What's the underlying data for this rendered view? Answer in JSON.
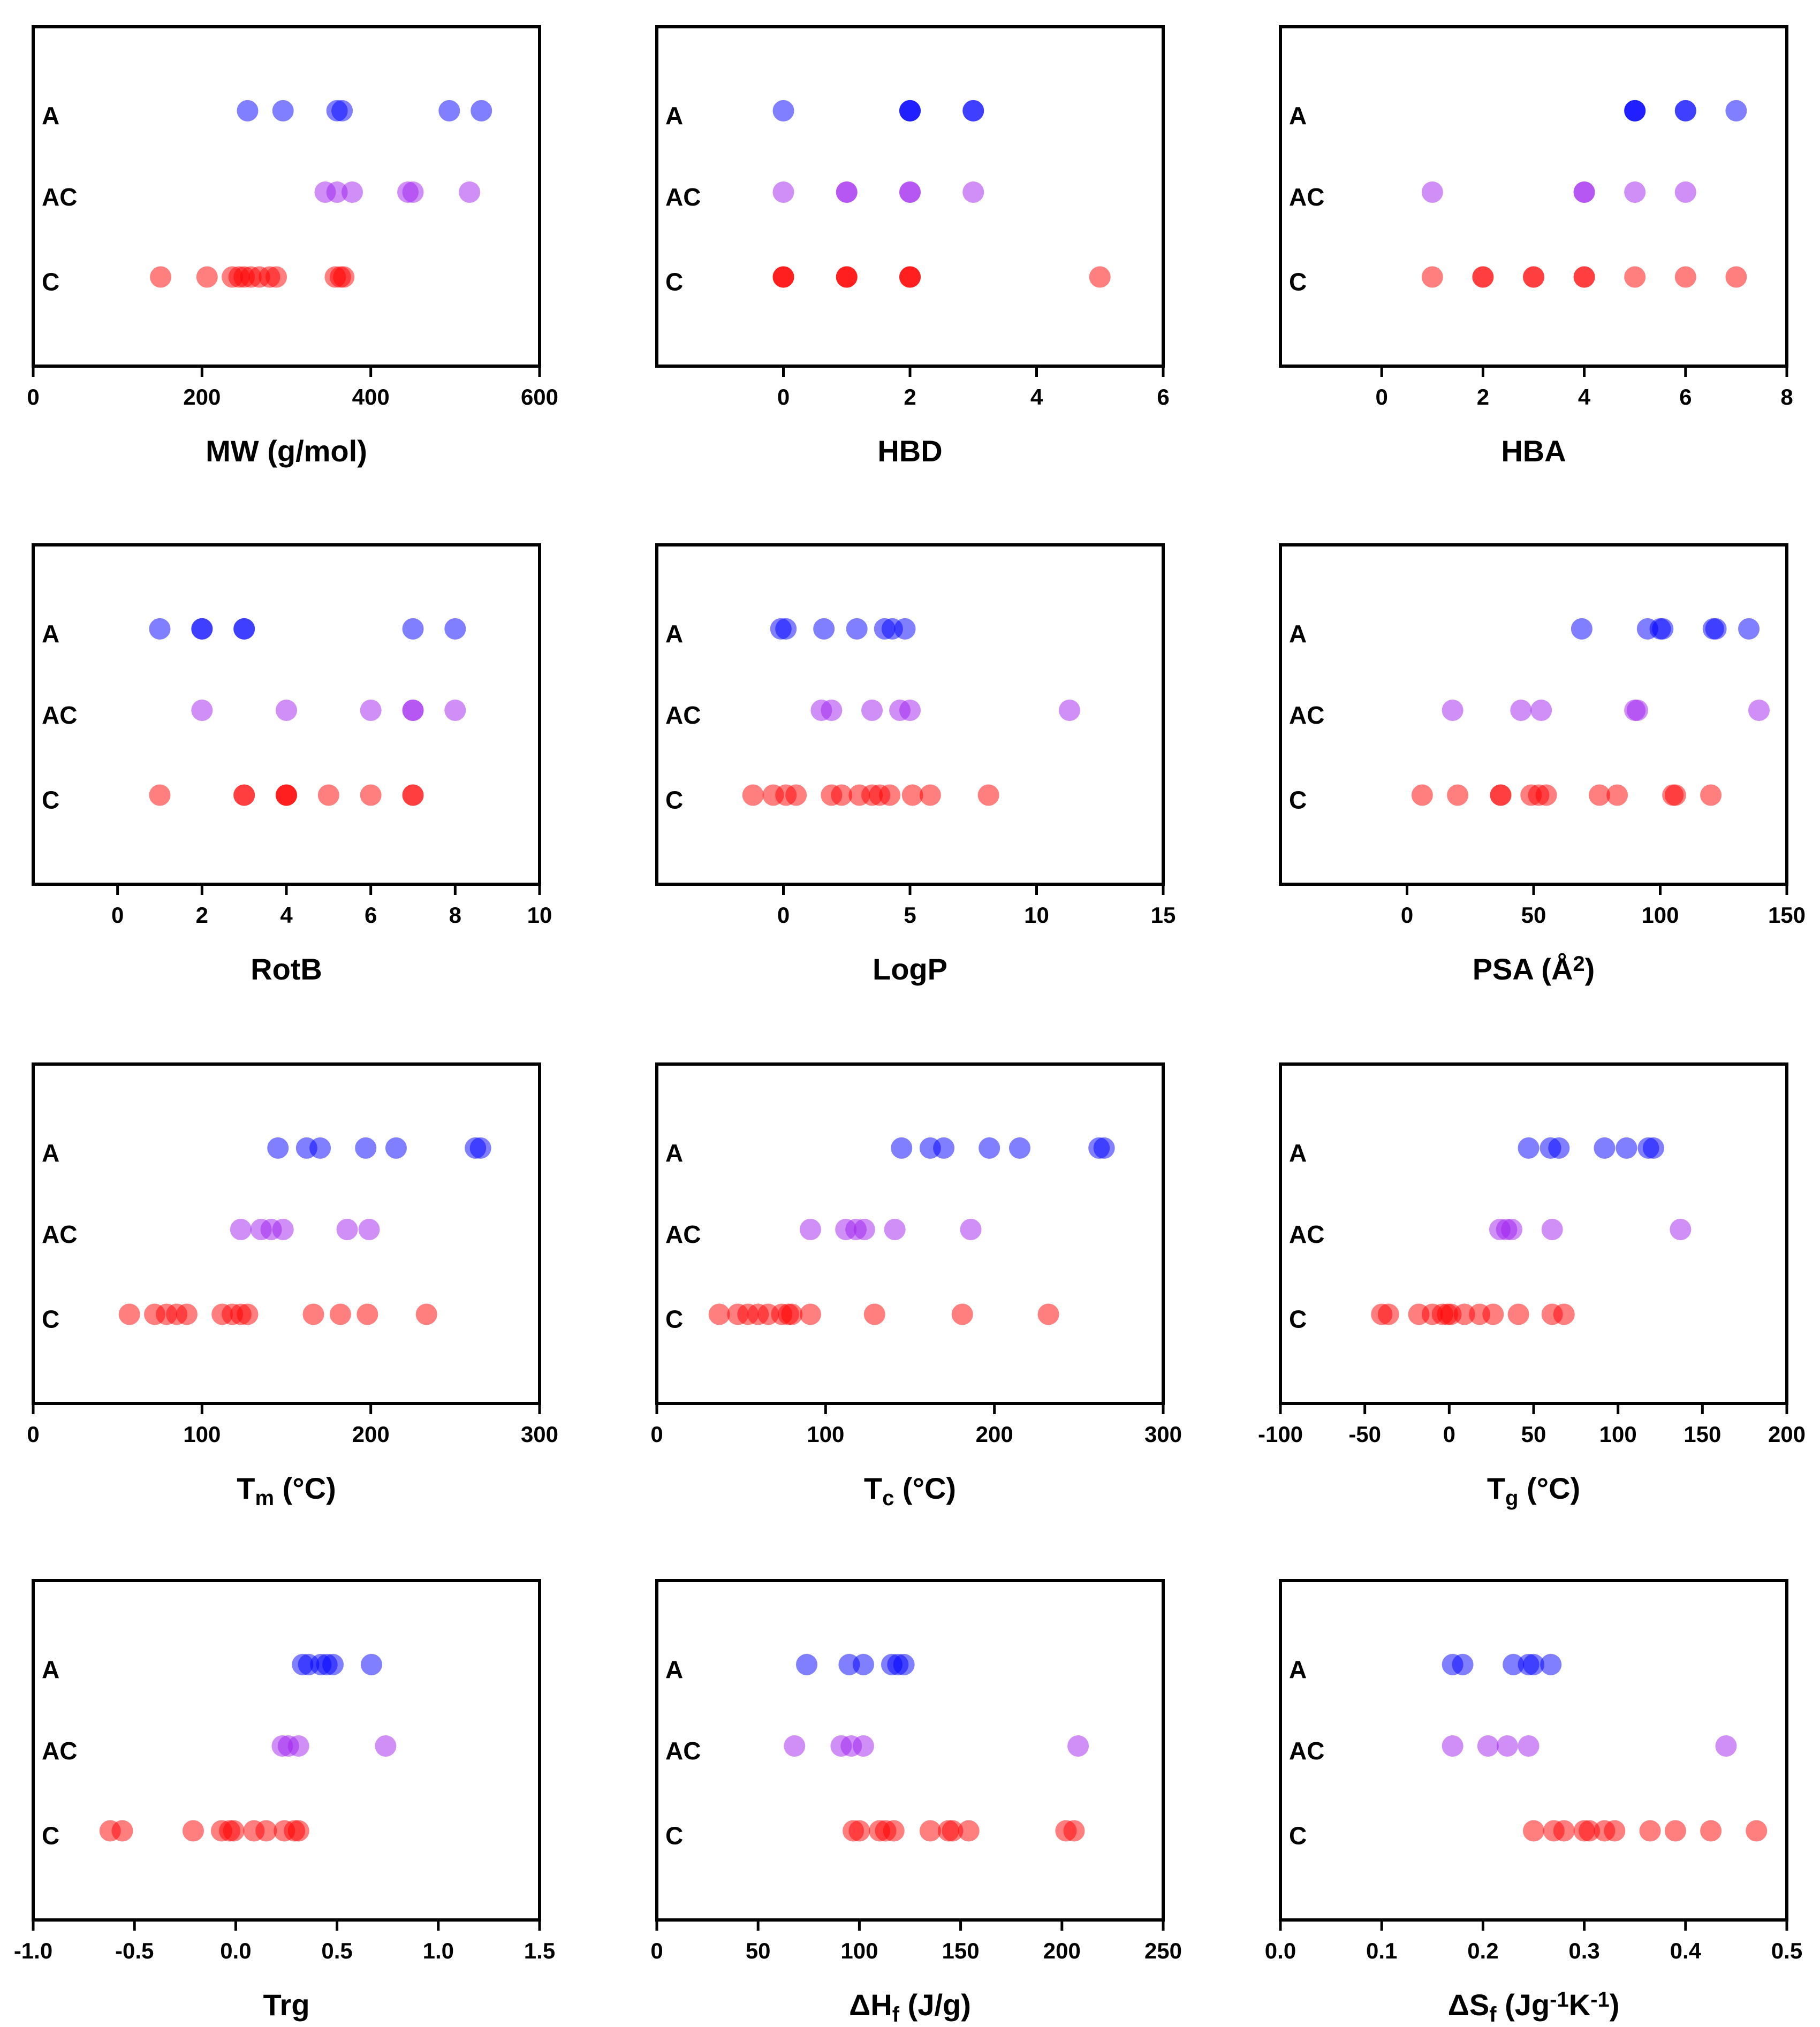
{
  "colors": {
    "A": "#0000ff",
    "AC": "#a020f0",
    "C": "#ff0000",
    "axis": "#000000"
  },
  "chart_data": [
    {
      "type": "scatter",
      "title": "",
      "xlabel": "MW (g/mol)",
      "xlabel_parts": [
        {
          "t": "MW (g/mol)"
        }
      ],
      "xlim": [
        0,
        600
      ],
      "xticks": [
        0,
        200,
        400,
        600
      ],
      "tick_labels": [
        "0",
        "200",
        "400",
        "600"
      ],
      "groups": [
        "A",
        "AC",
        "C"
      ],
      "series": [
        {
          "name": "A",
          "x": [
            254,
            296,
            360,
            366,
            493,
            531
          ]
        },
        {
          "name": "AC",
          "x": [
            346,
            360,
            378,
            444,
            450,
            517
          ]
        },
        {
          "name": "C",
          "x": [
            151,
            206,
            236,
            244,
            250,
            258,
            268,
            280,
            288,
            358,
            364,
            368
          ]
        }
      ]
    },
    {
      "type": "scatter",
      "title": "",
      "xlabel": "HBD",
      "xlabel_parts": [
        {
          "t": "HBD"
        }
      ],
      "xlim": [
        -2,
        6
      ],
      "xticks": [
        0,
        2,
        4,
        6
      ],
      "tick_labels": [
        "0",
        "2",
        "4",
        "6"
      ],
      "groups": [
        "A",
        "AC",
        "C"
      ],
      "series": [
        {
          "name": "A",
          "x": [
            0,
            2,
            2,
            2,
            3,
            3
          ]
        },
        {
          "name": "AC",
          "x": [
            0,
            1,
            1,
            2,
            2,
            3
          ]
        },
        {
          "name": "C",
          "x": [
            0,
            0,
            0,
            1,
            1,
            1,
            2,
            2,
            2,
            5
          ]
        }
      ]
    },
    {
      "type": "scatter",
      "title": "",
      "xlabel": "HBA",
      "xlabel_parts": [
        {
          "t": "HBA"
        }
      ],
      "xlim": [
        -2,
        8
      ],
      "xticks": [
        0,
        2,
        4,
        6,
        8
      ],
      "tick_labels": [
        "0",
        "2",
        "4",
        "6",
        "8"
      ],
      "groups": [
        "A",
        "AC",
        "C"
      ],
      "series": [
        {
          "name": "A",
          "x": [
            5,
            5,
            5,
            6,
            6,
            7
          ]
        },
        {
          "name": "AC",
          "x": [
            1,
            4,
            4,
            5,
            6
          ]
        },
        {
          "name": "C",
          "x": [
            1,
            2,
            2,
            3,
            3,
            4,
            4,
            5,
            6,
            7
          ]
        }
      ]
    },
    {
      "type": "scatter",
      "title": "",
      "xlabel": "RotB",
      "xlabel_parts": [
        {
          "t": "RotB"
        }
      ],
      "xlim": [
        -2,
        10
      ],
      "xticks": [
        0,
        2,
        4,
        6,
        8,
        10
      ],
      "tick_labels": [
        "0",
        "2",
        "4",
        "6",
        "8",
        "10"
      ],
      "groups": [
        "A",
        "AC",
        "C"
      ],
      "series": [
        {
          "name": "A",
          "x": [
            1,
            2,
            2,
            3,
            3,
            7,
            8
          ]
        },
        {
          "name": "AC",
          "x": [
            2,
            4,
            6,
            7,
            7,
            8
          ]
        },
        {
          "name": "C",
          "x": [
            1,
            3,
            3,
            4,
            4,
            4,
            5,
            6,
            7,
            7
          ]
        }
      ]
    },
    {
      "type": "scatter",
      "title": "",
      "xlabel": "LogP",
      "xlabel_parts": [
        {
          "t": "LogP"
        }
      ],
      "xlim": [
        -5,
        15
      ],
      "xticks": [
        0,
        5,
        10,
        15
      ],
      "tick_labels": [
        "0",
        "5",
        "10",
        "15"
      ],
      "groups": [
        "A",
        "AC",
        "C"
      ],
      "series": [
        {
          "name": "A",
          "x": [
            -0.1,
            0.1,
            1.6,
            2.9,
            4.0,
            4.3,
            4.8
          ]
        },
        {
          "name": "AC",
          "x": [
            1.5,
            1.9,
            3.5,
            4.6,
            5.0,
            11.3
          ]
        },
        {
          "name": "C",
          "x": [
            -1.2,
            -0.4,
            0.1,
            0.5,
            1.9,
            2.3,
            3.0,
            3.5,
            3.8,
            4.2,
            5.1,
            5.8,
            8.1
          ]
        }
      ]
    },
    {
      "type": "scatter",
      "title": "",
      "xlabel": "PSA (Å2)",
      "xlabel_parts": [
        {
          "t": "PSA (Å"
        },
        {
          "t": "2",
          "sup": true
        },
        {
          "t": ")"
        }
      ],
      "xlim": [
        -50,
        150
      ],
      "xticks": [
        0,
        50,
        100,
        150
      ],
      "tick_labels": [
        "0",
        "50",
        "100",
        "150"
      ],
      "groups": [
        "A",
        "AC",
        "C"
      ],
      "series": [
        {
          "name": "A",
          "x": [
            69,
            95,
            100,
            101,
            121,
            122,
            135
          ]
        },
        {
          "name": "AC",
          "x": [
            18,
            45,
            53,
            90,
            91,
            139
          ]
        },
        {
          "name": "C",
          "x": [
            6,
            20,
            37,
            37,
            49,
            52,
            55,
            76,
            83,
            105,
            106,
            120
          ]
        }
      ]
    },
    {
      "type": "scatter",
      "title": "",
      "xlabel": "Tm (°C)",
      "xlabel_parts": [
        {
          "t": "T"
        },
        {
          "t": "m",
          "sub": true
        },
        {
          "t": " (°C)"
        }
      ],
      "xlim": [
        0,
        300
      ],
      "xticks": [
        0,
        100,
        200,
        300
      ],
      "tick_labels": [
        "0",
        "100",
        "200",
        "300"
      ],
      "groups": [
        "A",
        "AC",
        "C"
      ],
      "series": [
        {
          "name": "A",
          "x": [
            145,
            162,
            170,
            197,
            215,
            262,
            265
          ]
        },
        {
          "name": "AC",
          "x": [
            123,
            135,
            141,
            148,
            186,
            199
          ]
        },
        {
          "name": "C",
          "x": [
            57,
            72,
            79,
            85,
            91,
            112,
            118,
            123,
            127,
            166,
            182,
            198,
            233
          ]
        }
      ]
    },
    {
      "type": "scatter",
      "title": "",
      "xlabel": "Tc (°C)",
      "xlabel_parts": [
        {
          "t": "T"
        },
        {
          "t": "c",
          "sub": true
        },
        {
          "t": " (°C)"
        }
      ],
      "xlim": [
        0,
        300
      ],
      "xticks": [
        0,
        100,
        200,
        300
      ],
      "tick_labels": [
        "0",
        "100",
        "200",
        "300"
      ],
      "groups": [
        "A",
        "AC",
        "C"
      ],
      "series": [
        {
          "name": "A",
          "x": [
            145,
            162,
            170,
            197,
            215,
            262,
            265
          ]
        },
        {
          "name": "AC",
          "x": [
            91,
            112,
            118,
            123,
            141,
            186
          ]
        },
        {
          "name": "C",
          "x": [
            37,
            48,
            54,
            60,
            66,
            74,
            78,
            80,
            91,
            129,
            181,
            232
          ]
        }
      ]
    },
    {
      "type": "scatter",
      "title": "",
      "xlabel": "Tg (°C)",
      "xlabel_parts": [
        {
          "t": "T"
        },
        {
          "t": "g",
          "sub": true
        },
        {
          "t": " (°C)"
        }
      ],
      "xlim": [
        -100,
        200
      ],
      "xticks": [
        -100,
        -50,
        0,
        50,
        100,
        150,
        200
      ],
      "tick_labels": [
        "-100",
        "-50",
        "0",
        "50",
        "100",
        "150",
        "200"
      ],
      "groups": [
        "A",
        "AC",
        "C"
      ],
      "series": [
        {
          "name": "A",
          "x": [
            47,
            60,
            65,
            92,
            105,
            118,
            121
          ]
        },
        {
          "name": "AC",
          "x": [
            30,
            34,
            37,
            61,
            137
          ]
        },
        {
          "name": "C",
          "x": [
            -40,
            -36,
            -18,
            -10,
            -4,
            -1,
            1,
            9,
            18,
            26,
            41,
            61,
            68
          ]
        }
      ]
    },
    {
      "type": "scatter",
      "title": "",
      "xlabel": "Trg",
      "xlabel_parts": [
        {
          "t": "Trg"
        }
      ],
      "xlim": [
        -1.0,
        1.5
      ],
      "xticks": [
        -1.0,
        -0.5,
        0.0,
        0.5,
        1.0,
        1.5
      ],
      "tick_labels": [
        "-1.0",
        "-0.5",
        "0.0",
        "0.5",
        "1.0",
        "1.5"
      ],
      "groups": [
        "A",
        "AC",
        "C"
      ],
      "series": [
        {
          "name": "A",
          "x": [
            0.33,
            0.36,
            0.42,
            0.45,
            0.48,
            0.67
          ]
        },
        {
          "name": "AC",
          "x": [
            0.23,
            0.26,
            0.31,
            0.74
          ]
        },
        {
          "name": "C",
          "x": [
            -0.62,
            -0.56,
            -0.21,
            -0.07,
            -0.03,
            -0.01,
            0.09,
            0.15,
            0.24,
            0.29,
            0.31
          ]
        }
      ]
    },
    {
      "type": "scatter",
      "title": "",
      "xlabel": "ΔHf (J/g)",
      "xlabel_parts": [
        {
          "t": "ΔH"
        },
        {
          "t": "f",
          "sub": true
        },
        {
          "t": " (J/g)"
        }
      ],
      "xlim": [
        0,
        250
      ],
      "xticks": [
        0,
        50,
        100,
        150,
        200,
        250
      ],
      "tick_labels": [
        "0",
        "50",
        "100",
        "150",
        "200",
        "250"
      ],
      "groups": [
        "A",
        "AC",
        "C"
      ],
      "series": [
        {
          "name": "A",
          "x": [
            74,
            95,
            102,
            116,
            119,
            122
          ]
        },
        {
          "name": "AC",
          "x": [
            68,
            91,
            96,
            102,
            208
          ]
        },
        {
          "name": "C",
          "x": [
            97,
            100,
            110,
            113,
            117,
            135,
            144,
            146,
            154,
            202,
            206
          ]
        }
      ]
    },
    {
      "type": "scatter",
      "title": "",
      "xlabel": "ΔSf (Jg-1K-1)",
      "xlabel_parts": [
        {
          "t": "ΔS"
        },
        {
          "t": "f",
          "sub": true
        },
        {
          "t": " (Jg"
        },
        {
          "t": "-1",
          "sup": true
        },
        {
          "t": "K"
        },
        {
          "t": "-1",
          "sup": true
        },
        {
          "t": ")"
        }
      ],
      "xlim": [
        0.0,
        0.5
      ],
      "xticks": [
        0.0,
        0.1,
        0.2,
        0.3,
        0.4,
        0.5
      ],
      "tick_labels": [
        "0.0",
        "0.1",
        "0.2",
        "0.3",
        "0.4",
        "0.5"
      ],
      "groups": [
        "A",
        "AC",
        "C"
      ],
      "series": [
        {
          "name": "A",
          "x": [
            0.17,
            0.18,
            0.23,
            0.245,
            0.25,
            0.267
          ]
        },
        {
          "name": "AC",
          "x": [
            0.17,
            0.205,
            0.224,
            0.245,
            0.44
          ]
        },
        {
          "name": "C",
          "x": [
            0.25,
            0.27,
            0.28,
            0.3,
            0.305,
            0.32,
            0.33,
            0.365,
            0.39,
            0.425,
            0.47
          ]
        }
      ]
    }
  ]
}
